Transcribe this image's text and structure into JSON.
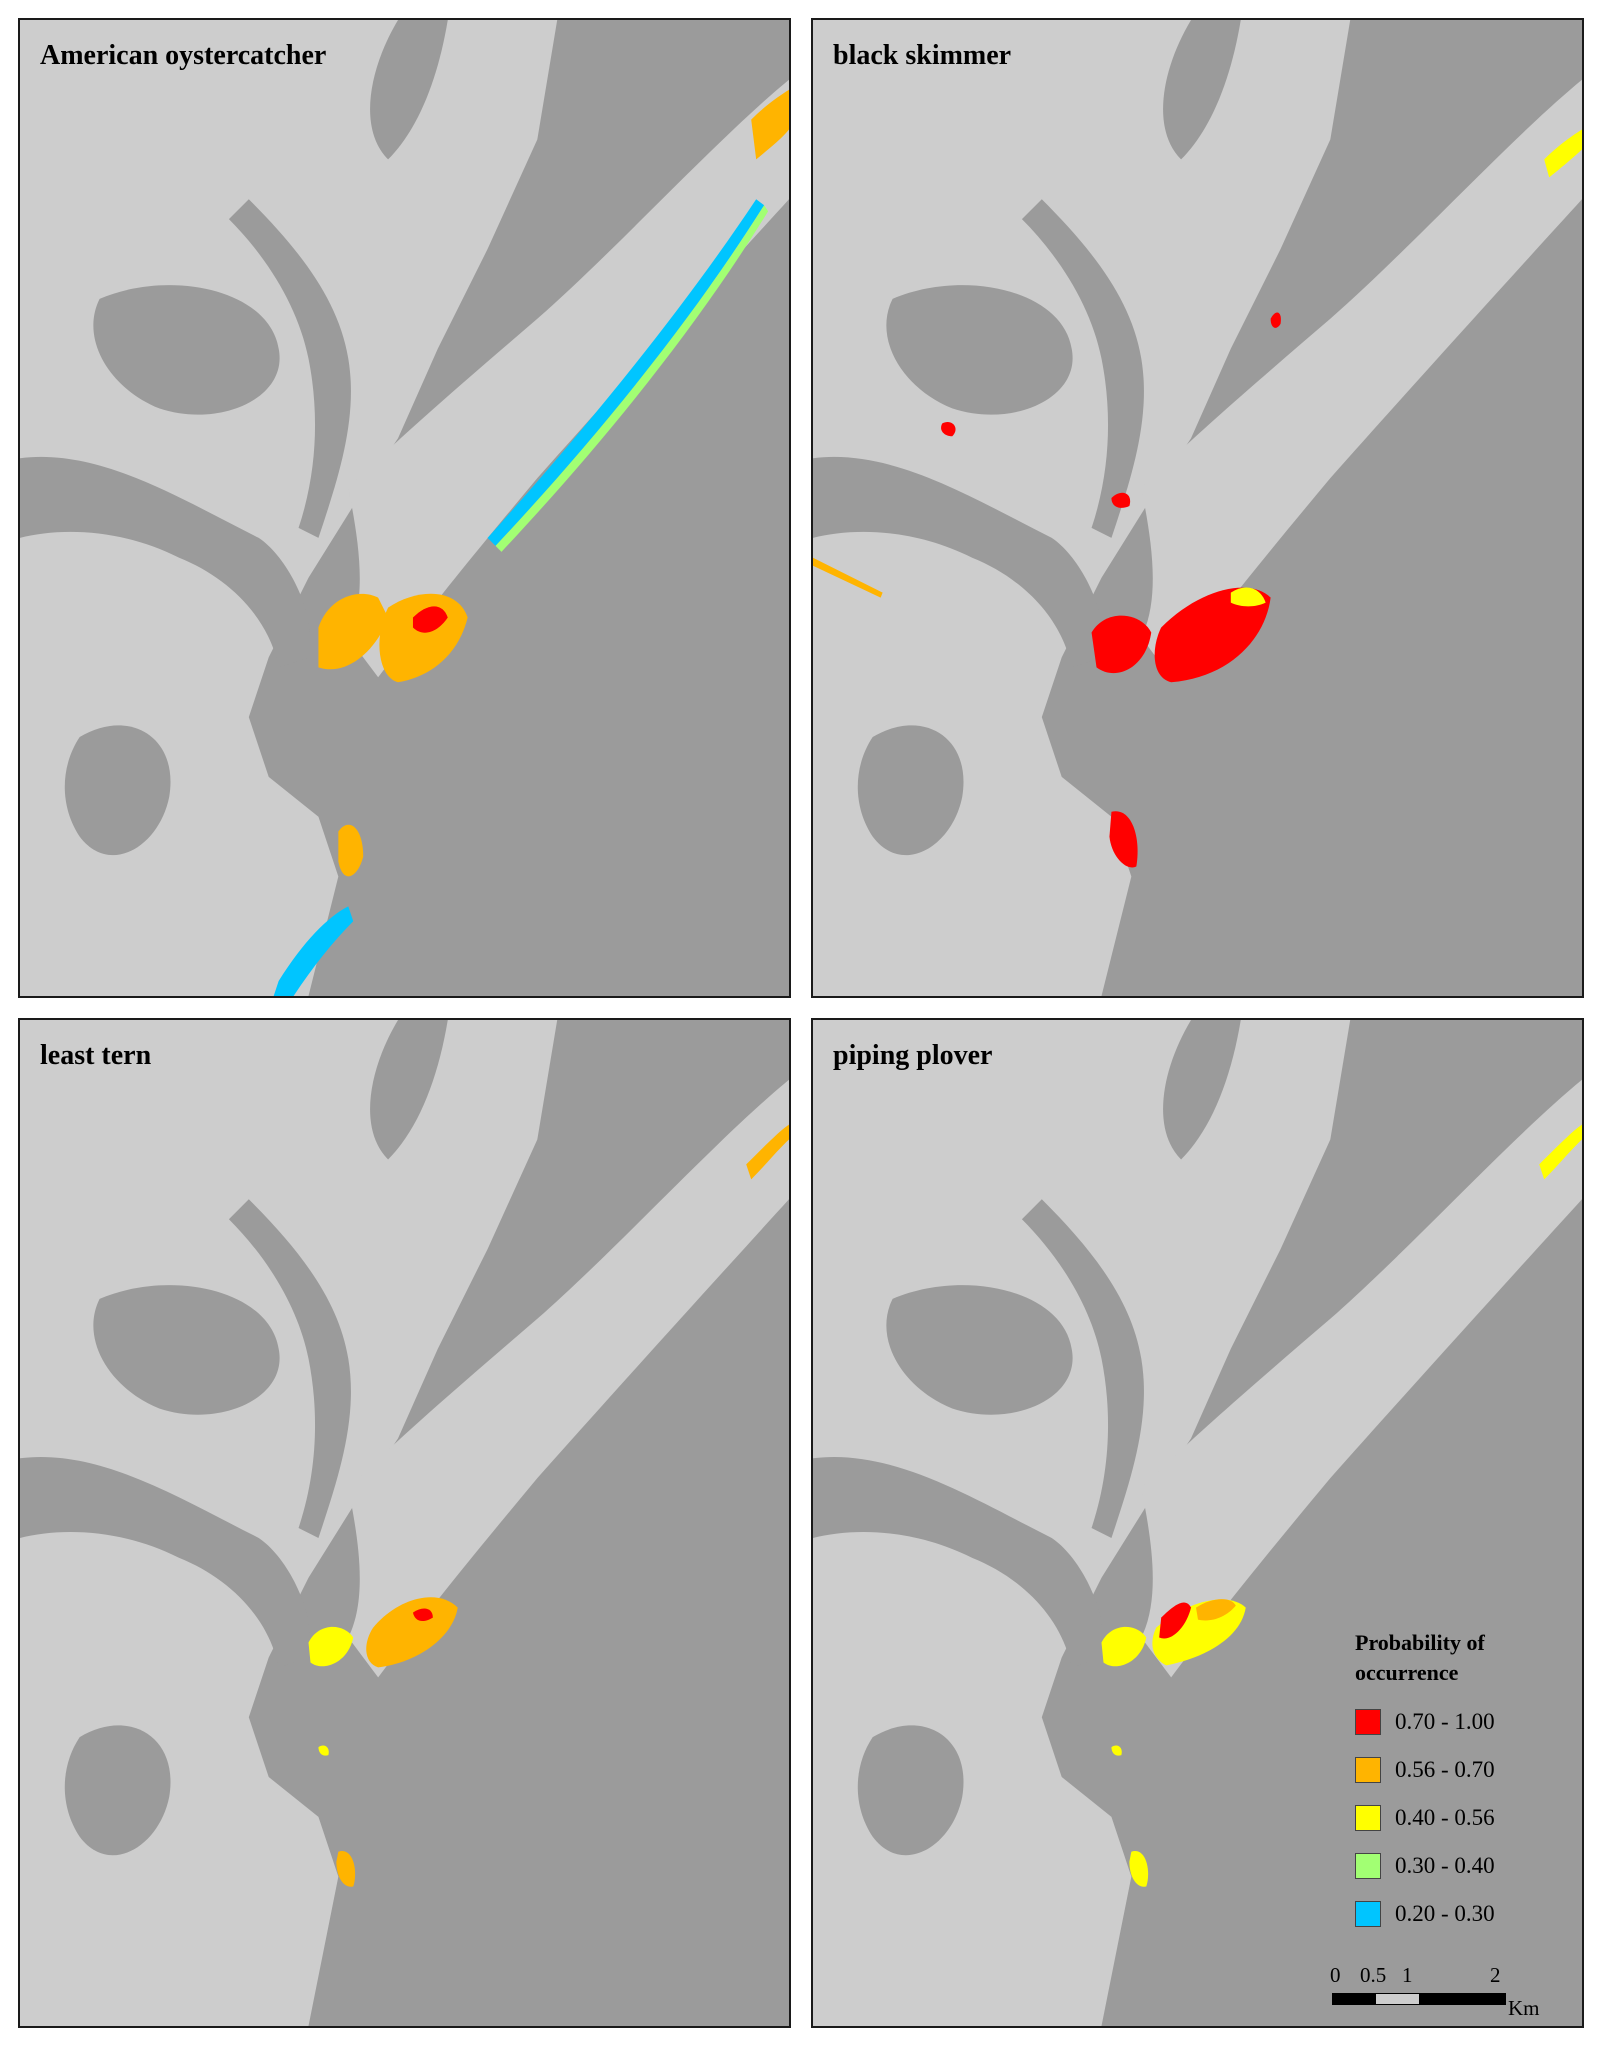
{
  "panels": [
    {
      "id": "p1",
      "title": "American oystercatcher"
    },
    {
      "id": "p2",
      "title": "black skimmer"
    },
    {
      "id": "p3",
      "title": "least tern"
    },
    {
      "id": "p4",
      "title": "piping plover"
    }
  ],
  "legend": {
    "title_line1": "Probability of",
    "title_line2": "occurrence",
    "classes": [
      {
        "label": "0.70 - 1.00",
        "color": "#ff0000"
      },
      {
        "label": "0.56 - 0.70",
        "color": "#ffb400"
      },
      {
        "label": "0.40 - 0.56",
        "color": "#ffff00"
      },
      {
        "label": "0.30 - 0.40",
        "color": "#a2ff73"
      },
      {
        "label": "0.20 - 0.30",
        "color": "#00c5ff"
      }
    ]
  },
  "scalebar": {
    "ticks": [
      "0",
      "0.5",
      "1",
      "2"
    ],
    "unit": "Km"
  },
  "colors": {
    "water": "#9b9b9b",
    "land": "#cdcdcd"
  }
}
